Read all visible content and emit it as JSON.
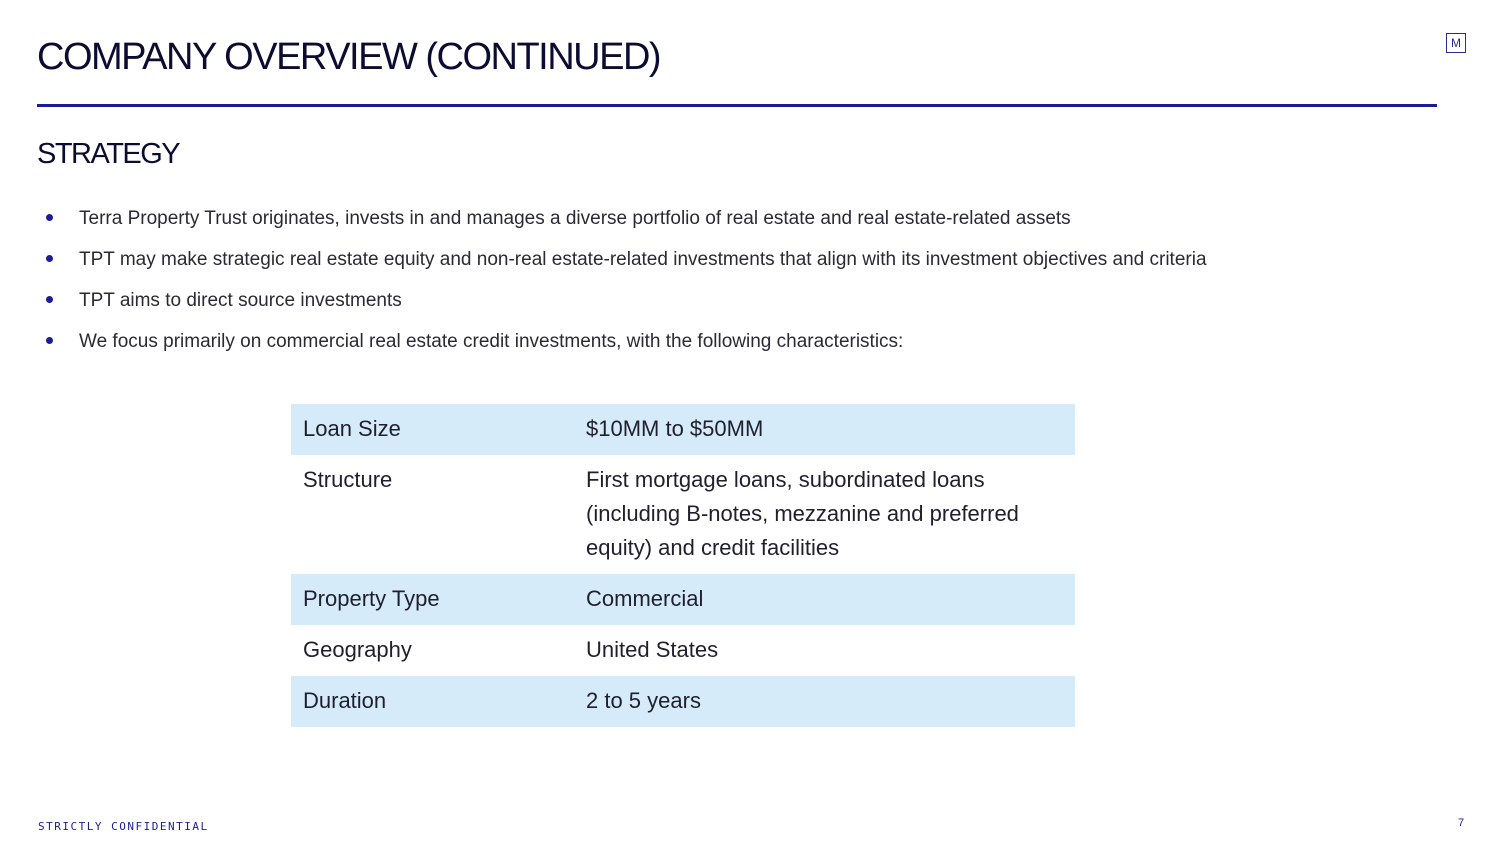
{
  "header": {
    "title": "COMPANY OVERVIEW (CONTINUED)",
    "logo": "M"
  },
  "section_title": "STRATEGY",
  "bullets": [
    "Terra Property Trust originates, invests in and manages a diverse portfolio of real estate and real estate-related assets",
    "TPT may make strategic real estate equity and non-real estate-related investments that align with its investment objectives and criteria",
    "TPT aims to direct source investments",
    "We focus primarily on commercial real estate credit investments, with the following characteristics:"
  ],
  "table": {
    "rows": [
      [
        "Loan Size",
        "$10MM to $50MM"
      ],
      [
        "Structure",
        "First mortgage loans, subordinated loans (including B-notes, mezzanine and preferred equity) and credit facilities"
      ],
      [
        "Property Type",
        "Commercial"
      ],
      [
        "Geography",
        "United States"
      ],
      [
        "Duration",
        "2 to 5 years"
      ]
    ]
  },
  "footer": {
    "confidential": "STRICTLY CONFIDENTIAL",
    "page_number": "7"
  }
}
